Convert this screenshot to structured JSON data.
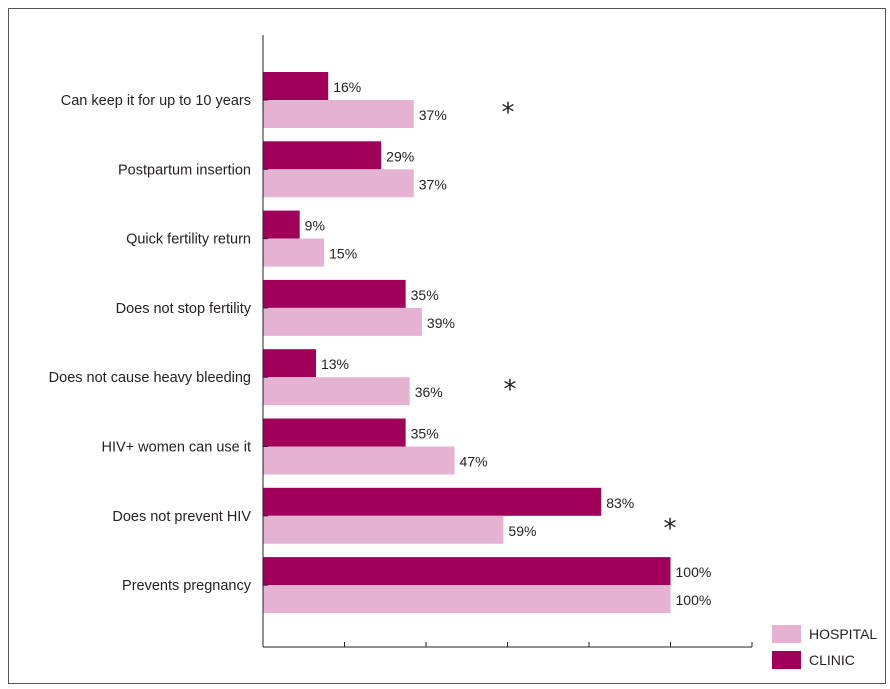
{
  "colors": {
    "clinic": "#a0005a",
    "hospital": "#e5b2d2",
    "axis": "#231f20"
  },
  "chart_data": {
    "type": "bar",
    "orientation": "horizontal",
    "categories": [
      "Can keep it for up to 10 years",
      "Postpartum insertion",
      "Quick fertility return",
      "Does not stop fertility",
      "Does not cause heavy bleeding",
      "HIV+ women can use it",
      "Does not prevent HIV",
      "Prevents pregnancy"
    ],
    "series": [
      {
        "name": "CLINIC",
        "values": [
          16,
          29,
          9,
          35,
          13,
          35,
          83,
          100
        ],
        "labels": [
          "16%",
          "29%",
          "9%",
          "35%",
          "13%",
          "35%",
          "83%",
          "100%"
        ]
      },
      {
        "name": "HOSPITAL",
        "values": [
          37,
          37,
          15,
          39,
          36,
          47,
          59,
          100
        ],
        "labels": [
          "37%",
          "37%",
          "15%",
          "39%",
          "36%",
          "47%",
          "59%",
          "100%"
        ]
      }
    ],
    "significance_marker": "*",
    "significant_categories": [
      0,
      4,
      6
    ],
    "xlim": [
      0,
      120
    ],
    "x_tick_step": 20,
    "xlabel": "",
    "ylabel": "",
    "grid": false,
    "legend": {
      "position": "bottom-right",
      "entries": [
        "HOSPITAL",
        "CLINIC"
      ]
    }
  }
}
